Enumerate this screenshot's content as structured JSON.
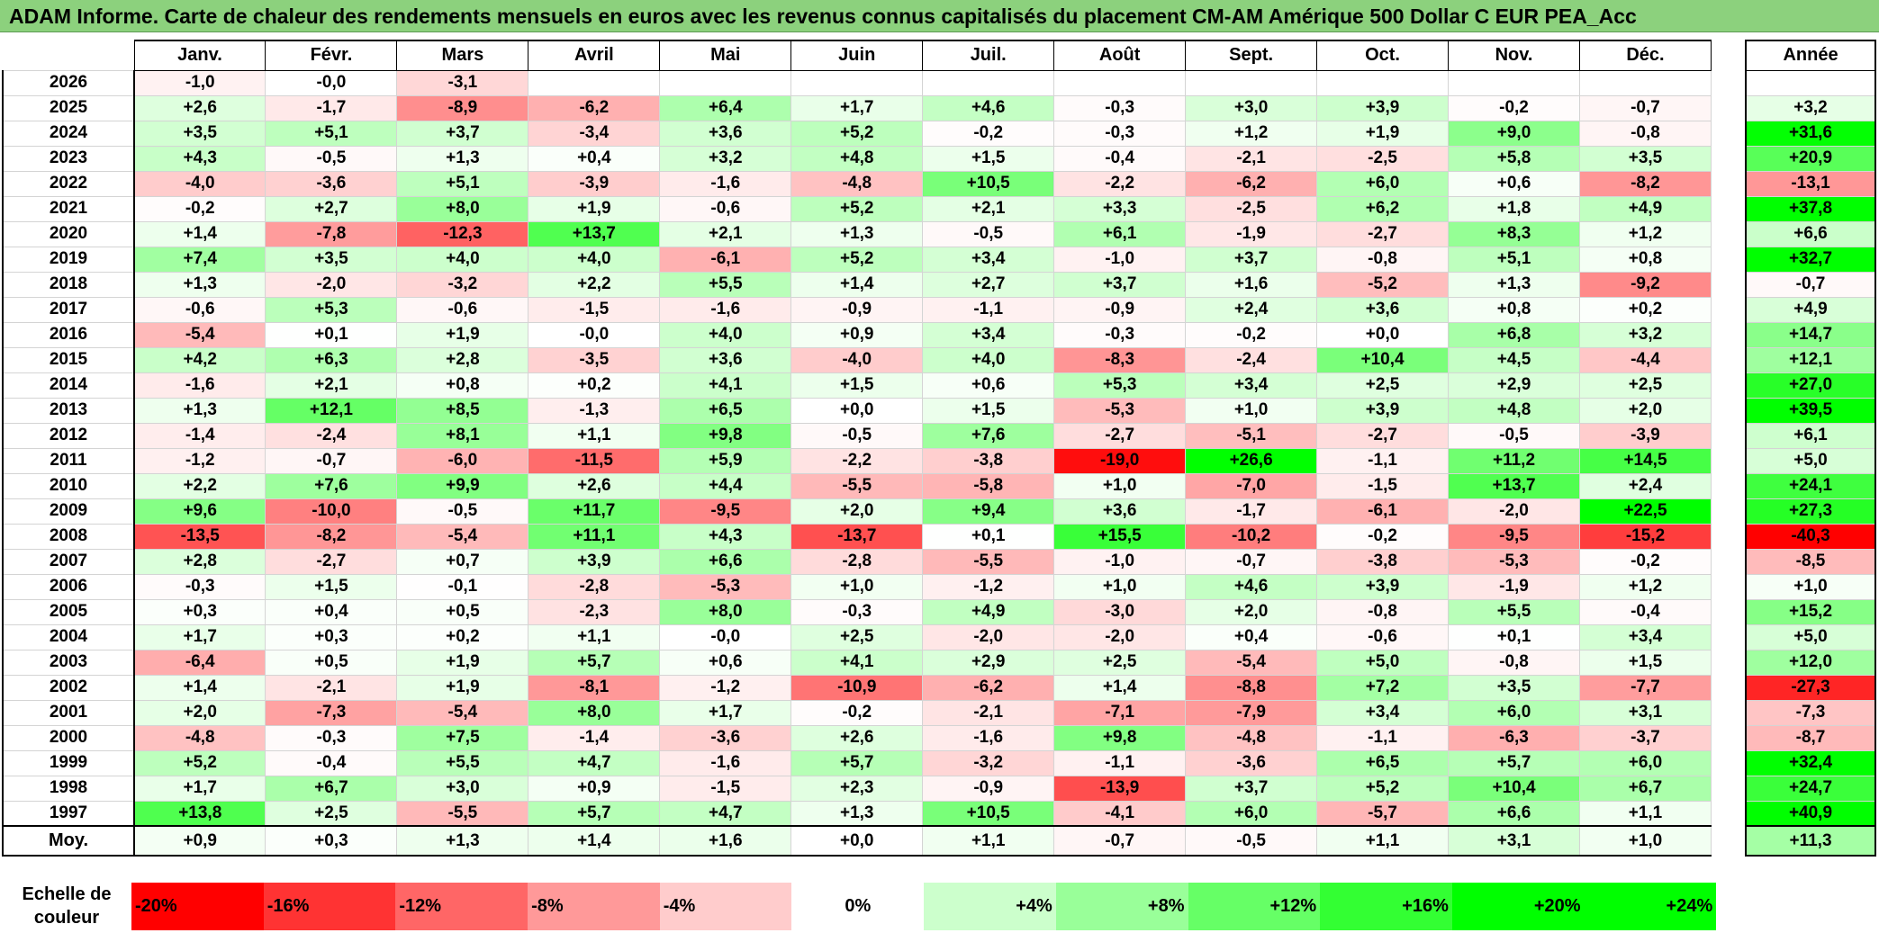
{
  "title": "ADAM Informe. Carte de chaleur des rendements mensuels en euros avec les revenus connus capitalisés du placement CM-AM Amérique 500 Dollar C EUR PEA_Acc",
  "chart_data": {
    "type": "heatmap",
    "months": [
      "Janv.",
      "Févr.",
      "Mars",
      "Avril",
      "Mai",
      "Juin",
      "Juil.",
      "Août",
      "Sept.",
      "Oct.",
      "Nov.",
      "Déc."
    ],
    "annual_header": "Année",
    "rows": [
      {
        "year": "2026",
        "values": [
          "-1,0",
          "-0,0",
          "-3,1",
          "",
          "",
          "",
          "",
          "",
          "",
          "",
          "",
          ""
        ],
        "annual": ""
      },
      {
        "year": "2025",
        "values": [
          "+2,6",
          "-1,7",
          "-8,9",
          "-6,2",
          "+6,4",
          "+1,7",
          "+4,6",
          "-0,3",
          "+3,0",
          "+3,9",
          "-0,2",
          "-0,7"
        ],
        "annual": "+3,2"
      },
      {
        "year": "2024",
        "values": [
          "+3,5",
          "+5,1",
          "+3,7",
          "-3,4",
          "+3,6",
          "+5,2",
          "-0,2",
          "-0,3",
          "+1,2",
          "+1,9",
          "+9,0",
          "-0,8"
        ],
        "annual": "+31,6"
      },
      {
        "year": "2023",
        "values": [
          "+4,3",
          "-0,5",
          "+1,3",
          "+0,4",
          "+3,2",
          "+4,8",
          "+1,5",
          "-0,4",
          "-2,1",
          "-2,5",
          "+5,8",
          "+3,5"
        ],
        "annual": "+20,9"
      },
      {
        "year": "2022",
        "values": [
          "-4,0",
          "-3,6",
          "+5,1",
          "-3,9",
          "-1,6",
          "-4,8",
          "+10,5",
          "-2,2",
          "-6,2",
          "+6,0",
          "+0,6",
          "-8,2"
        ],
        "annual": "-13,1"
      },
      {
        "year": "2021",
        "values": [
          "-0,2",
          "+2,7",
          "+8,0",
          "+1,9",
          "-0,6",
          "+5,2",
          "+2,1",
          "+3,3",
          "-2,5",
          "+6,2",
          "+1,8",
          "+4,9"
        ],
        "annual": "+37,8"
      },
      {
        "year": "2020",
        "values": [
          "+1,4",
          "-7,8",
          "-12,3",
          "+13,7",
          "+2,1",
          "+1,3",
          "-0,5",
          "+6,1",
          "-1,9",
          "-2,7",
          "+8,3",
          "+1,2"
        ],
        "annual": "+6,6"
      },
      {
        "year": "2019",
        "values": [
          "+7,4",
          "+3,5",
          "+4,0",
          "+4,0",
          "-6,1",
          "+5,2",
          "+3,4",
          "-1,0",
          "+3,7",
          "-0,8",
          "+5,1",
          "+0,8"
        ],
        "annual": "+32,7"
      },
      {
        "year": "2018",
        "values": [
          "+1,3",
          "-2,0",
          "-3,2",
          "+2,2",
          "+5,5",
          "+1,4",
          "+2,7",
          "+3,7",
          "+1,6",
          "-5,2",
          "+1,3",
          "-9,2"
        ],
        "annual": "-0,7"
      },
      {
        "year": "2017",
        "values": [
          "-0,6",
          "+5,3",
          "-0,6",
          "-1,5",
          "-1,6",
          "-0,9",
          "-1,1",
          "-0,9",
          "+2,4",
          "+3,6",
          "+0,8",
          "+0,2"
        ],
        "annual": "+4,9"
      },
      {
        "year": "2016",
        "values": [
          "-5,4",
          "+0,1",
          "+1,9",
          "-0,0",
          "+4,0",
          "+0,9",
          "+3,4",
          "-0,3",
          "-0,2",
          "+0,0",
          "+6,8",
          "+3,2"
        ],
        "annual": "+14,7"
      },
      {
        "year": "2015",
        "values": [
          "+4,2",
          "+6,3",
          "+2,8",
          "-3,5",
          "+3,6",
          "-4,0",
          "+4,0",
          "-8,3",
          "-2,4",
          "+10,4",
          "+4,5",
          "-4,4"
        ],
        "annual": "+12,1"
      },
      {
        "year": "2014",
        "values": [
          "-1,6",
          "+2,1",
          "+0,8",
          "+0,2",
          "+4,1",
          "+1,5",
          "+0,6",
          "+5,3",
          "+3,4",
          "+2,5",
          "+2,9",
          "+2,5"
        ],
        "annual": "+27,0"
      },
      {
        "year": "2013",
        "values": [
          "+1,3",
          "+12,1",
          "+8,5",
          "-1,3",
          "+6,5",
          "+0,0",
          "+1,5",
          "-5,3",
          "+1,0",
          "+3,9",
          "+4,8",
          "+2,0"
        ],
        "annual": "+39,5"
      },
      {
        "year": "2012",
        "values": [
          "-1,4",
          "-2,4",
          "+8,1",
          "+1,1",
          "+9,8",
          "-0,5",
          "+7,6",
          "-2,7",
          "-5,1",
          "-2,7",
          "-0,5",
          "-3,9"
        ],
        "annual": "+6,1"
      },
      {
        "year": "2011",
        "values": [
          "-1,2",
          "-0,7",
          "-6,0",
          "-11,5",
          "+5,9",
          "-2,2",
          "-3,8",
          "-19,0",
          "+26,6",
          "-1,1",
          "+11,2",
          "+14,5"
        ],
        "annual": "+5,0"
      },
      {
        "year": "2010",
        "values": [
          "+2,2",
          "+7,6",
          "+9,9",
          "+2,6",
          "+4,4",
          "-5,5",
          "-5,8",
          "+1,0",
          "-7,0",
          "-1,5",
          "+13,7",
          "+2,4"
        ],
        "annual": "+24,1"
      },
      {
        "year": "2009",
        "values": [
          "+9,6",
          "-10,0",
          "-0,5",
          "+11,7",
          "-9,5",
          "+2,0",
          "+9,4",
          "+3,6",
          "-1,7",
          "-6,1",
          "-2,0",
          "+22,5"
        ],
        "annual": "+27,3"
      },
      {
        "year": "2008",
        "values": [
          "-13,5",
          "-8,2",
          "-5,4",
          "+11,1",
          "+4,3",
          "-13,7",
          "+0,1",
          "+15,5",
          "-10,2",
          "-0,2",
          "-9,5",
          "-15,2"
        ],
        "annual": "-40,3"
      },
      {
        "year": "2007",
        "values": [
          "+2,8",
          "-2,7",
          "+0,7",
          "+3,9",
          "+6,6",
          "-2,8",
          "-5,5",
          "-1,0",
          "-0,7",
          "-3,8",
          "-5,3",
          "-0,2"
        ],
        "annual": "-8,5"
      },
      {
        "year": "2006",
        "values": [
          "-0,3",
          "+1,5",
          "-0,1",
          "-2,8",
          "-5,3",
          "+1,0",
          "-1,2",
          "+1,0",
          "+4,6",
          "+3,9",
          "-1,9",
          "+1,2"
        ],
        "annual": "+1,0"
      },
      {
        "year": "2005",
        "values": [
          "+0,3",
          "+0,4",
          "+0,5",
          "-2,3",
          "+8,0",
          "-0,3",
          "+4,9",
          "-3,0",
          "+2,0",
          "-0,8",
          "+5,5",
          "-0,4"
        ],
        "annual": "+15,2"
      },
      {
        "year": "2004",
        "values": [
          "+1,7",
          "+0,3",
          "+0,2",
          "+1,1",
          "-0,0",
          "+2,5",
          "-2,0",
          "-2,0",
          "+0,4",
          "-0,6",
          "+0,1",
          "+3,4"
        ],
        "annual": "+5,0"
      },
      {
        "year": "2003",
        "values": [
          "-6,4",
          "+0,5",
          "+1,9",
          "+5,7",
          "+0,6",
          "+4,1",
          "+2,9",
          "+2,5",
          "-5,4",
          "+5,0",
          "-0,8",
          "+1,5"
        ],
        "annual": "+12,0"
      },
      {
        "year": "2002",
        "values": [
          "+1,4",
          "-2,1",
          "+1,9",
          "-8,1",
          "-1,2",
          "-10,9",
          "-6,2",
          "+1,4",
          "-8,8",
          "+7,2",
          "+3,5",
          "-7,7"
        ],
        "annual": "-27,3"
      },
      {
        "year": "2001",
        "values": [
          "+2,0",
          "-7,3",
          "-5,4",
          "+8,0",
          "+1,7",
          "-0,2",
          "-2,1",
          "-7,1",
          "-7,9",
          "+3,4",
          "+6,0",
          "+3,1"
        ],
        "annual": "-7,3"
      },
      {
        "year": "2000",
        "values": [
          "-4,8",
          "-0,3",
          "+7,5",
          "-1,4",
          "-3,6",
          "+2,6",
          "-1,6",
          "+9,8",
          "-4,8",
          "-1,1",
          "-6,3",
          "-3,7"
        ],
        "annual": "-8,7"
      },
      {
        "year": "1999",
        "values": [
          "+5,2",
          "-0,4",
          "+5,5",
          "+4,7",
          "-1,6",
          "+5,7",
          "-3,2",
          "-1,1",
          "-3,6",
          "+6,5",
          "+5,7",
          "+6,0"
        ],
        "annual": "+32,4"
      },
      {
        "year": "1998",
        "values": [
          "+1,7",
          "+6,7",
          "+3,0",
          "+0,9",
          "-1,5",
          "+2,3",
          "-0,9",
          "-13,9",
          "+3,7",
          "+5,2",
          "+10,4",
          "+6,7"
        ],
        "annual": "+24,7"
      },
      {
        "year": "1997",
        "values": [
          "+13,8",
          "+2,5",
          "-5,5",
          "+5,7",
          "+4,7",
          "+1,3",
          "+10,5",
          "-4,1",
          "+6,0",
          "-5,7",
          "+6,6",
          "+1,1"
        ],
        "annual": "+40,9"
      }
    ],
    "average": {
      "label": "Moy.",
      "values": [
        "+0,9",
        "+0,3",
        "+1,3",
        "+1,4",
        "+1,6",
        "+0,0",
        "+1,1",
        "-0,7",
        "-0,5",
        "+1,1",
        "+3,1",
        "+1,0"
      ],
      "annual": "+11,3"
    },
    "color_scale": {
      "label": "Echelle de couleur",
      "stops": [
        {
          "label": "-20%",
          "value": -20,
          "color": "#ff0000"
        },
        {
          "label": "-16%",
          "value": -16,
          "color": "#ff3333"
        },
        {
          "label": "-12%",
          "value": -12,
          "color": "#ff6666"
        },
        {
          "label": "-8%",
          "value": -8,
          "color": "#ff9999"
        },
        {
          "label": "-4%",
          "value": -4,
          "color": "#ffcccc"
        },
        {
          "label": "0%",
          "value": 0,
          "color": "#ffffff"
        },
        {
          "label": "+4%",
          "value": 4,
          "color": "#ccffcc"
        },
        {
          "label": "+8%",
          "value": 8,
          "color": "#99ff99"
        },
        {
          "label": "+12%",
          "value": 12,
          "color": "#66ff66"
        },
        {
          "label": "+16%",
          "value": 16,
          "color": "#33ff33"
        },
        {
          "label": "+20%",
          "value": 20,
          "color": "#00ff00"
        },
        {
          "label": "+24%",
          "value": 24,
          "color": "#00ff00"
        }
      ],
      "annual_color_extent": 32
    }
  }
}
